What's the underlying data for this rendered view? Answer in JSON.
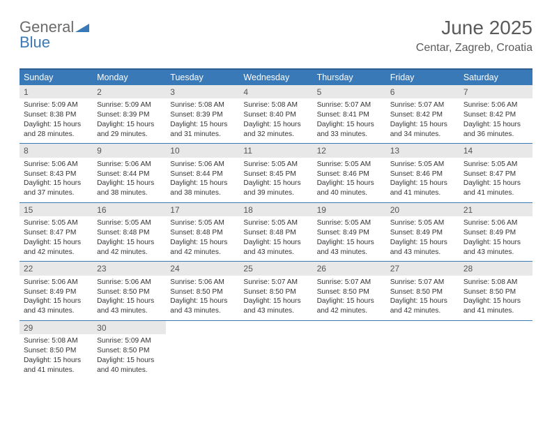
{
  "logo": {
    "part1": "General",
    "part2": "Blue"
  },
  "header": {
    "title": "June 2025",
    "subtitle": "Centar, Zagreb, Croatia"
  },
  "colors": {
    "header_bg": "#3a79b7",
    "header_border": "#2f5d91",
    "daynum_bg": "#e8e8e8",
    "text": "#333333",
    "logo_gray": "#6a6a6a",
    "logo_blue": "#3a79b7",
    "title_color": "#5a5a5a"
  },
  "weekdays": [
    "Sunday",
    "Monday",
    "Tuesday",
    "Wednesday",
    "Thursday",
    "Friday",
    "Saturday"
  ],
  "days": [
    {
      "n": "1",
      "sunrise": "5:09 AM",
      "sunset": "8:38 PM",
      "dl": "15 hours and 28 minutes."
    },
    {
      "n": "2",
      "sunrise": "5:09 AM",
      "sunset": "8:39 PM",
      "dl": "15 hours and 29 minutes."
    },
    {
      "n": "3",
      "sunrise": "5:08 AM",
      "sunset": "8:39 PM",
      "dl": "15 hours and 31 minutes."
    },
    {
      "n": "4",
      "sunrise": "5:08 AM",
      "sunset": "8:40 PM",
      "dl": "15 hours and 32 minutes."
    },
    {
      "n": "5",
      "sunrise": "5:07 AM",
      "sunset": "8:41 PM",
      "dl": "15 hours and 33 minutes."
    },
    {
      "n": "6",
      "sunrise": "5:07 AM",
      "sunset": "8:42 PM",
      "dl": "15 hours and 34 minutes."
    },
    {
      "n": "7",
      "sunrise": "5:06 AM",
      "sunset": "8:42 PM",
      "dl": "15 hours and 36 minutes."
    },
    {
      "n": "8",
      "sunrise": "5:06 AM",
      "sunset": "8:43 PM",
      "dl": "15 hours and 37 minutes."
    },
    {
      "n": "9",
      "sunrise": "5:06 AM",
      "sunset": "8:44 PM",
      "dl": "15 hours and 38 minutes."
    },
    {
      "n": "10",
      "sunrise": "5:06 AM",
      "sunset": "8:44 PM",
      "dl": "15 hours and 38 minutes."
    },
    {
      "n": "11",
      "sunrise": "5:05 AM",
      "sunset": "8:45 PM",
      "dl": "15 hours and 39 minutes."
    },
    {
      "n": "12",
      "sunrise": "5:05 AM",
      "sunset": "8:46 PM",
      "dl": "15 hours and 40 minutes."
    },
    {
      "n": "13",
      "sunrise": "5:05 AM",
      "sunset": "8:46 PM",
      "dl": "15 hours and 41 minutes."
    },
    {
      "n": "14",
      "sunrise": "5:05 AM",
      "sunset": "8:47 PM",
      "dl": "15 hours and 41 minutes."
    },
    {
      "n": "15",
      "sunrise": "5:05 AM",
      "sunset": "8:47 PM",
      "dl": "15 hours and 42 minutes."
    },
    {
      "n": "16",
      "sunrise": "5:05 AM",
      "sunset": "8:48 PM",
      "dl": "15 hours and 42 minutes."
    },
    {
      "n": "17",
      "sunrise": "5:05 AM",
      "sunset": "8:48 PM",
      "dl": "15 hours and 42 minutes."
    },
    {
      "n": "18",
      "sunrise": "5:05 AM",
      "sunset": "8:48 PM",
      "dl": "15 hours and 43 minutes."
    },
    {
      "n": "19",
      "sunrise": "5:05 AM",
      "sunset": "8:49 PM",
      "dl": "15 hours and 43 minutes."
    },
    {
      "n": "20",
      "sunrise": "5:05 AM",
      "sunset": "8:49 PM",
      "dl": "15 hours and 43 minutes."
    },
    {
      "n": "21",
      "sunrise": "5:06 AM",
      "sunset": "8:49 PM",
      "dl": "15 hours and 43 minutes."
    },
    {
      "n": "22",
      "sunrise": "5:06 AM",
      "sunset": "8:49 PM",
      "dl": "15 hours and 43 minutes."
    },
    {
      "n": "23",
      "sunrise": "5:06 AM",
      "sunset": "8:50 PM",
      "dl": "15 hours and 43 minutes."
    },
    {
      "n": "24",
      "sunrise": "5:06 AM",
      "sunset": "8:50 PM",
      "dl": "15 hours and 43 minutes."
    },
    {
      "n": "25",
      "sunrise": "5:07 AM",
      "sunset": "8:50 PM",
      "dl": "15 hours and 43 minutes."
    },
    {
      "n": "26",
      "sunrise": "5:07 AM",
      "sunset": "8:50 PM",
      "dl": "15 hours and 42 minutes."
    },
    {
      "n": "27",
      "sunrise": "5:07 AM",
      "sunset": "8:50 PM",
      "dl": "15 hours and 42 minutes."
    },
    {
      "n": "28",
      "sunrise": "5:08 AM",
      "sunset": "8:50 PM",
      "dl": "15 hours and 41 minutes."
    },
    {
      "n": "29",
      "sunrise": "5:08 AM",
      "sunset": "8:50 PM",
      "dl": "15 hours and 41 minutes."
    },
    {
      "n": "30",
      "sunrise": "5:09 AM",
      "sunset": "8:50 PM",
      "dl": "15 hours and 40 minutes."
    }
  ],
  "labels": {
    "sunrise": "Sunrise: ",
    "sunset": "Sunset: ",
    "daylight": "Daylight: "
  }
}
